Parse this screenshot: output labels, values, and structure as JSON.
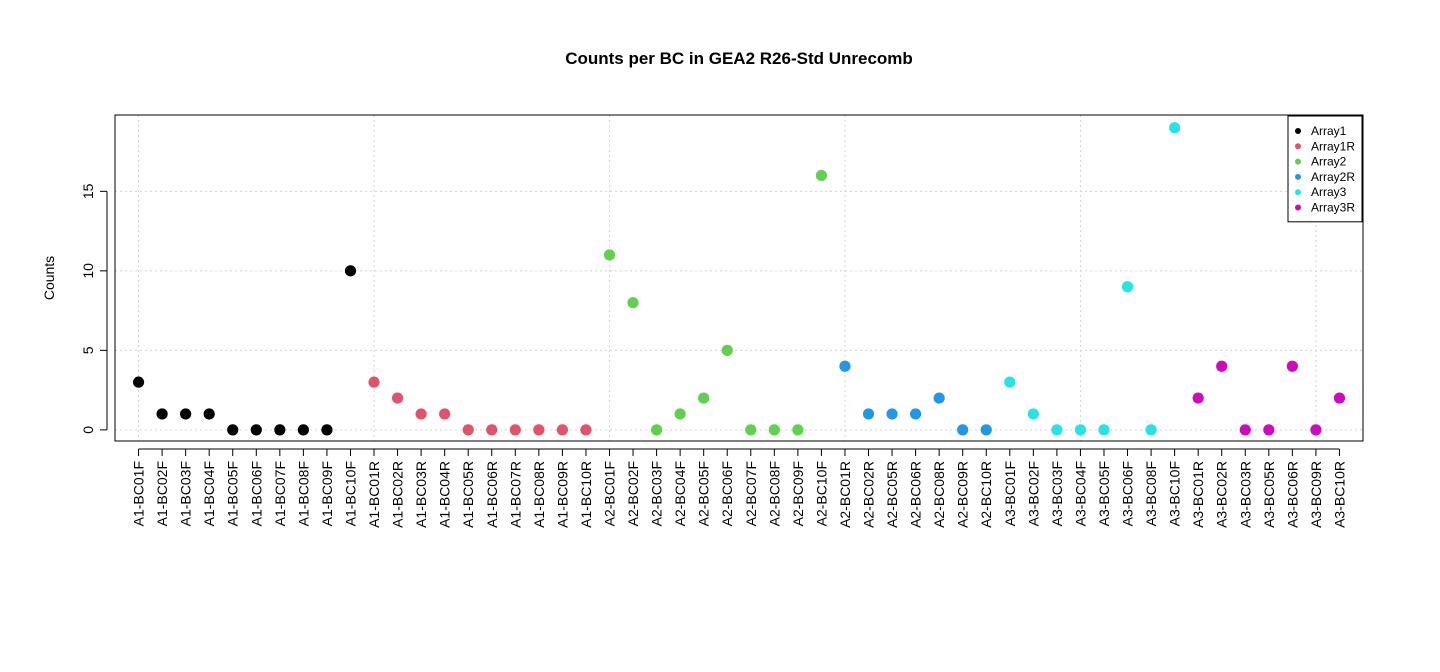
{
  "chart_data": {
    "type": "scatter",
    "title": "Counts per BC in GEA2 R26-Std Unrecomb",
    "xlabel": "",
    "ylabel": "Counts",
    "ylim": [
      -0.7,
      19.8
    ],
    "y_ticks": [
      0,
      5,
      10,
      15
    ],
    "grid": true,
    "legend_position": "top-right",
    "categories": [
      "A1-BC01F",
      "A1-BC02F",
      "A1-BC03F",
      "A1-BC04F",
      "A1-BC05F",
      "A1-BC06F",
      "A1-BC07F",
      "A1-BC08F",
      "A1-BC09F",
      "A1-BC10F",
      "A1-BC01R",
      "A1-BC02R",
      "A1-BC03R",
      "A1-BC04R",
      "A1-BC05R",
      "A1-BC06R",
      "A1-BC07R",
      "A1-BC08R",
      "A1-BC09R",
      "A1-BC10R",
      "A2-BC01F",
      "A2-BC02F",
      "A2-BC03F",
      "A2-BC04F",
      "A2-BC05F",
      "A2-BC06F",
      "A2-BC07F",
      "A2-BC08F",
      "A2-BC09F",
      "A2-BC10F",
      "A2-BC01R",
      "A2-BC02R",
      "A2-BC05R",
      "A2-BC06R",
      "A2-BC08R",
      "A2-BC09R",
      "A2-BC10R",
      "A3-BC01F",
      "A3-BC02F",
      "A3-BC03F",
      "A3-BC04F",
      "A3-BC05F",
      "A3-BC06F",
      "A3-BC08F",
      "A3-BC10F",
      "A3-BC01R",
      "A3-BC02R",
      "A3-BC03R",
      "A3-BC05R",
      "A3-BC06R",
      "A3-BC09R",
      "A3-BC10R"
    ],
    "series": [
      {
        "name": "Array1",
        "color": "#000000",
        "start": 0,
        "values": [
          3,
          1,
          1,
          1,
          0,
          0,
          0,
          0,
          0,
          10
        ]
      },
      {
        "name": "Array1R",
        "color": "#DF536B",
        "start": 10,
        "values": [
          3,
          2,
          1,
          1,
          0,
          0,
          0,
          0,
          0,
          0
        ]
      },
      {
        "name": "Array2",
        "color": "#61D04F",
        "start": 20,
        "values": [
          11,
          8,
          0,
          1,
          2,
          5,
          0,
          0,
          0,
          16
        ]
      },
      {
        "name": "Array2R",
        "color": "#2297E6",
        "start": 30,
        "values": [
          4,
          1,
          1,
          1,
          2,
          0,
          0
        ]
      },
      {
        "name": "Array3",
        "color": "#28E2E5",
        "start": 37,
        "values": [
          3,
          1,
          0,
          0,
          0,
          9,
          0,
          19
        ]
      },
      {
        "name": "Array3R",
        "color": "#CD0BBC",
        "start": 45,
        "values": [
          2,
          4,
          0,
          0,
          4,
          0,
          2
        ]
      }
    ]
  }
}
